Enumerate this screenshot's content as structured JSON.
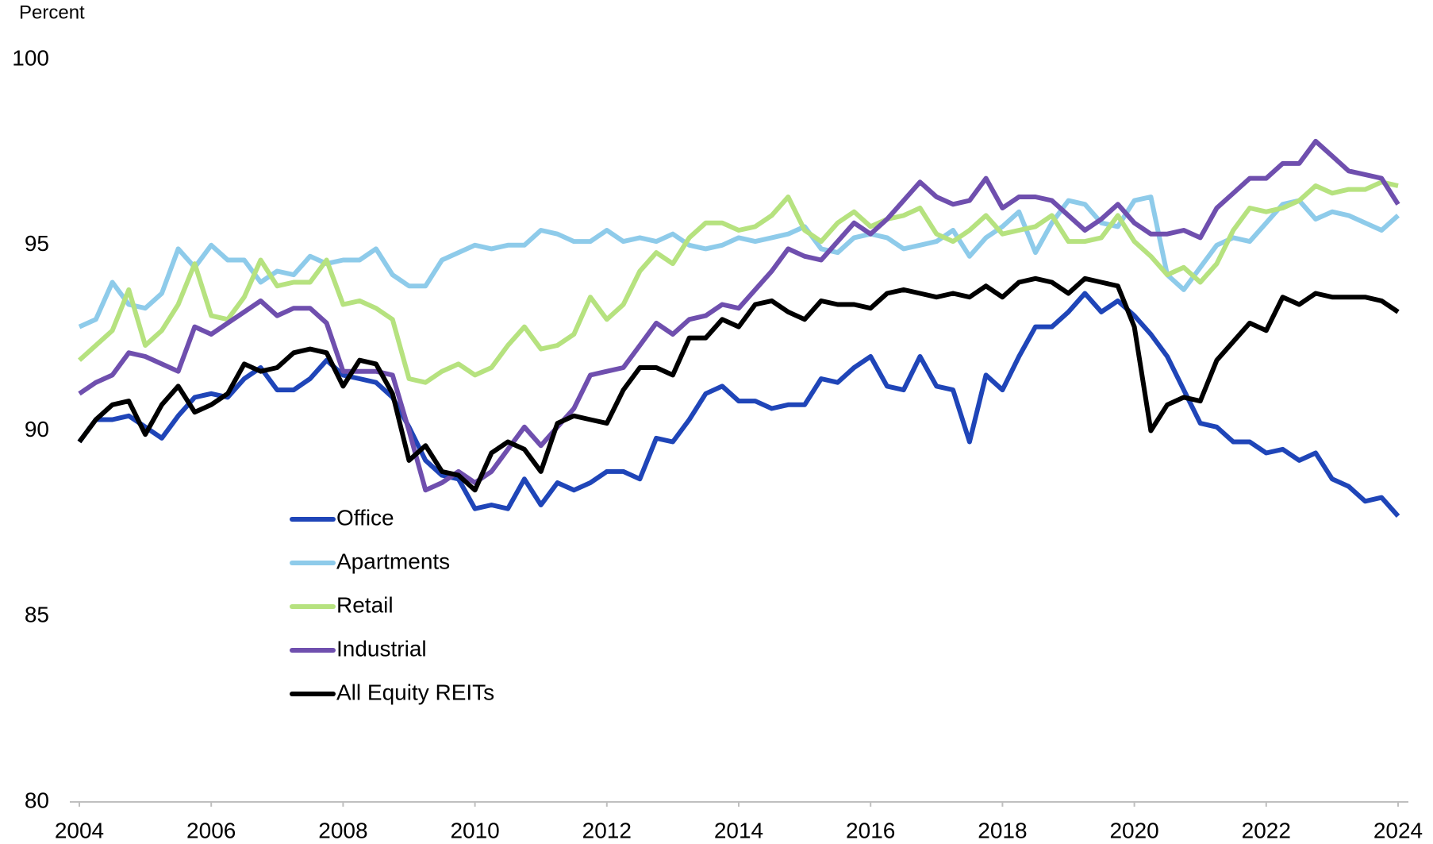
{
  "chart_data": {
    "type": "line",
    "y_label": "Percent",
    "xlim": [
      2004,
      2024
    ],
    "xticks": [
      2004,
      2006,
      2008,
      2010,
      2012,
      2014,
      2016,
      2018,
      2020,
      2022,
      2024
    ],
    "ylim": [
      80,
      100
    ],
    "yticks": [
      80,
      85,
      90,
      95,
      100
    ],
    "grid": false,
    "legend": "center-left",
    "x": [
      2004,
      2004.25,
      2004.5,
      2004.75,
      2005,
      2005.25,
      2005.5,
      2005.75,
      2006,
      2006.25,
      2006.5,
      2006.75,
      2007,
      2007.25,
      2007.5,
      2007.75,
      2008,
      2008.25,
      2008.5,
      2008.75,
      2009,
      2009.25,
      2009.5,
      2009.75,
      2010,
      2010.25,
      2010.5,
      2010.75,
      2011,
      2011.25,
      2011.5,
      2011.75,
      2012,
      2012.25,
      2012.5,
      2012.75,
      2013,
      2013.25,
      2013.5,
      2013.75,
      2014,
      2014.25,
      2014.5,
      2014.75,
      2015,
      2015.25,
      2015.5,
      2015.75,
      2016,
      2016.25,
      2016.5,
      2016.75,
      2017,
      2017.25,
      2017.5,
      2017.75,
      2018,
      2018.25,
      2018.5,
      2018.75,
      2019,
      2019.25,
      2019.5,
      2019.75,
      2020,
      2020.25,
      2020.5,
      2020.75,
      2021,
      2021.25,
      2021.5,
      2021.75,
      2022,
      2022.25,
      2022.5,
      2022.75,
      2023,
      2023.25,
      2023.5,
      2023.75,
      2024
    ],
    "series": [
      {
        "name": "Office",
        "color": "#1f45b8",
        "values": [
          89.7,
          90.3,
          90.3,
          90.4,
          90.1,
          89.8,
          90.4,
          90.9,
          91.0,
          90.9,
          91.4,
          91.7,
          91.1,
          91.1,
          91.4,
          91.9,
          91.5,
          91.4,
          91.3,
          90.9,
          90.1,
          89.2,
          88.8,
          88.7,
          87.9,
          88.0,
          87.9,
          88.7,
          88.0,
          88.6,
          88.4,
          88.6,
          88.9,
          88.9,
          88.7,
          89.8,
          89.7,
          90.3,
          91.0,
          91.2,
          90.8,
          90.8,
          90.6,
          90.7,
          90.7,
          91.4,
          91.3,
          91.7,
          92.0,
          91.2,
          91.1,
          92.0,
          91.2,
          91.1,
          89.7,
          91.5,
          91.1,
          92.0,
          92.8,
          92.8,
          93.2,
          93.7,
          93.2,
          93.5,
          93.1,
          92.6,
          92.0,
          91.1,
          90.2,
          90.1,
          89.7,
          89.7,
          89.4,
          89.5,
          89.2,
          89.4,
          88.7,
          88.5,
          88.1,
          88.2,
          87.7
        ]
      },
      {
        "name": "Apartments",
        "color": "#8ecbea",
        "values": [
          92.8,
          93.0,
          94.0,
          93.4,
          93.3,
          93.7,
          94.9,
          94.4,
          95.0,
          94.6,
          94.6,
          94.0,
          94.3,
          94.2,
          94.7,
          94.5,
          94.6,
          94.6,
          94.9,
          94.2,
          93.9,
          93.9,
          94.6,
          94.8,
          95.0,
          94.9,
          95.0,
          95.0,
          95.4,
          95.3,
          95.1,
          95.1,
          95.4,
          95.1,
          95.2,
          95.1,
          95.3,
          95.0,
          94.9,
          95.0,
          95.2,
          95.1,
          95.2,
          95.3,
          95.5,
          94.9,
          94.8,
          95.2,
          95.3,
          95.2,
          94.9,
          95.0,
          95.1,
          95.4,
          94.7,
          95.2,
          95.5,
          95.9,
          94.8,
          95.6,
          96.2,
          96.1,
          95.6,
          95.5,
          96.2,
          96.3,
          94.2,
          93.8,
          94.4,
          95.0,
          95.2,
          95.1,
          95.6,
          96.1,
          96.2,
          95.7,
          95.9,
          95.8,
          95.6,
          95.4,
          95.8
        ]
      },
      {
        "name": "Retail",
        "color": "#b6e27f",
        "values": [
          91.9,
          92.3,
          92.7,
          93.8,
          92.3,
          92.7,
          93.4,
          94.5,
          93.1,
          93.0,
          93.6,
          94.6,
          93.9,
          94.0,
          94.0,
          94.6,
          93.4,
          93.5,
          93.3,
          93.0,
          91.4,
          91.3,
          91.6,
          91.8,
          91.5,
          91.7,
          92.3,
          92.8,
          92.2,
          92.3,
          92.6,
          93.6,
          93.0,
          93.4,
          94.3,
          94.8,
          94.5,
          95.2,
          95.6,
          95.6,
          95.4,
          95.5,
          95.8,
          96.3,
          95.4,
          95.1,
          95.6,
          95.9,
          95.5,
          95.7,
          95.8,
          96.0,
          95.3,
          95.1,
          95.4,
          95.8,
          95.3,
          95.4,
          95.5,
          95.8,
          95.1,
          95.1,
          95.2,
          95.8,
          95.1,
          94.7,
          94.2,
          94.4,
          94.0,
          94.5,
          95.4,
          96.0,
          95.9,
          96.0,
          96.2,
          96.6,
          96.4,
          96.5,
          96.5,
          96.7,
          96.6
        ]
      },
      {
        "name": "Industrial",
        "color": "#6f4fae",
        "values": [
          91.0,
          91.3,
          91.5,
          92.1,
          92.0,
          91.8,
          91.6,
          92.8,
          92.6,
          92.9,
          93.2,
          93.5,
          93.1,
          93.3,
          93.3,
          92.9,
          91.6,
          91.6,
          91.6,
          91.5,
          90.0,
          88.4,
          88.6,
          88.9,
          88.6,
          88.9,
          89.5,
          90.1,
          89.6,
          90.1,
          90.6,
          91.5,
          91.6,
          91.7,
          92.3,
          92.9,
          92.6,
          93.0,
          93.1,
          93.4,
          93.3,
          93.8,
          94.3,
          94.9,
          94.7,
          94.6,
          95.1,
          95.6,
          95.3,
          95.7,
          96.2,
          96.7,
          96.3,
          96.1,
          96.2,
          96.8,
          96.0,
          96.3,
          96.3,
          96.2,
          95.8,
          95.4,
          95.7,
          96.1,
          95.6,
          95.3,
          95.3,
          95.4,
          95.2,
          96.0,
          96.4,
          96.8,
          96.8,
          97.2,
          97.2,
          97.8,
          97.4,
          97.0,
          96.9,
          96.8,
          96.1
        ]
      },
      {
        "name": "All Equity REITs",
        "color": "#000000",
        "values": [
          89.7,
          90.3,
          90.7,
          90.8,
          89.9,
          90.7,
          91.2,
          90.5,
          90.7,
          91.0,
          91.8,
          91.6,
          91.7,
          92.1,
          92.2,
          92.1,
          91.2,
          91.9,
          91.8,
          91.0,
          89.2,
          89.6,
          88.9,
          88.8,
          88.4,
          89.4,
          89.7,
          89.5,
          88.9,
          90.2,
          90.4,
          90.3,
          90.2,
          91.1,
          91.7,
          91.7,
          91.5,
          92.5,
          92.5,
          93.0,
          92.8,
          93.4,
          93.5,
          93.2,
          93.0,
          93.5,
          93.4,
          93.4,
          93.3,
          93.7,
          93.8,
          93.7,
          93.6,
          93.7,
          93.6,
          93.9,
          93.6,
          94.0,
          94.1,
          94.0,
          93.7,
          94.1,
          94.0,
          93.9,
          92.8,
          90.0,
          90.7,
          90.9,
          90.8,
          91.9,
          92.4,
          92.9,
          92.7,
          93.6,
          93.4,
          93.7,
          93.6,
          93.6,
          93.6,
          93.5,
          93.2
        ]
      }
    ]
  }
}
